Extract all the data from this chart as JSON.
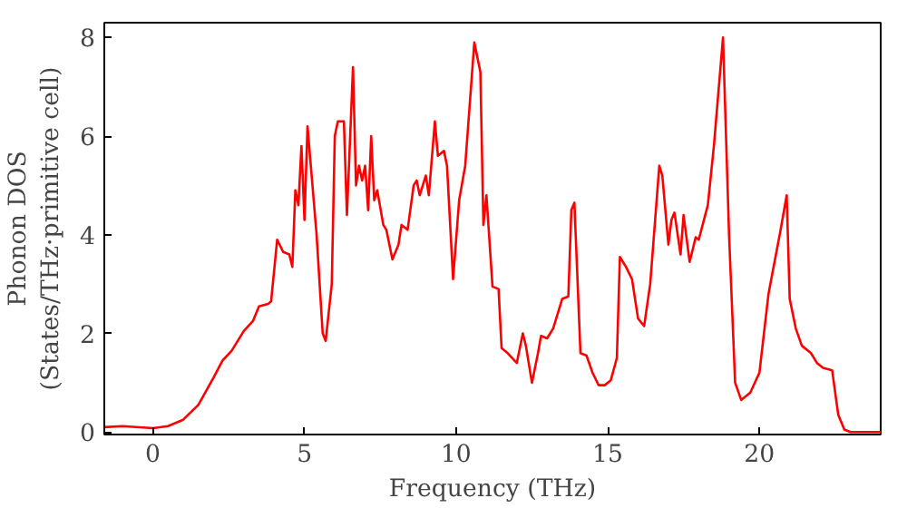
{
  "chart_data": {
    "type": "line",
    "xlabel": "Frequency (THz)",
    "ylabel": "Phonon DOS\n(States/THz·primitive cell)",
    "xlim": [
      -1.6,
      24
    ],
    "ylim": [
      -0.05,
      8.3
    ],
    "xticks": [
      0,
      5,
      10,
      15,
      20
    ],
    "yticks": [
      0,
      2,
      4,
      6,
      8
    ],
    "grid": false,
    "series": [
      {
        "color": "#ff0000",
        "x": [
          -1.6,
          -1,
          0,
          0.5,
          1,
          1.5,
          2,
          2.3,
          2.6,
          3,
          3.3,
          3.5,
          3.8,
          3.9,
          4.1,
          4.3,
          4.5,
          4.6,
          4.7,
          4.8,
          4.9,
          5.0,
          5.1,
          5.4,
          5.6,
          5.7,
          5.9,
          6.0,
          6.1,
          6.3,
          6.4,
          6.6,
          6.7,
          6.8,
          6.9,
          7.0,
          7.1,
          7.2,
          7.3,
          7.4,
          7.6,
          7.7,
          7.9,
          8.1,
          8.2,
          8.4,
          8.6,
          8.7,
          8.8,
          9.0,
          9.1,
          9.3,
          9.4,
          9.6,
          9.7,
          9.9,
          10.1,
          10.3,
          10.6,
          10.8,
          10.9,
          11.0,
          11.2,
          11.4,
          11.5,
          11.7,
          12.0,
          12.2,
          12.3,
          12.5,
          12.7,
          12.8,
          13.0,
          13.2,
          13.5,
          13.7,
          13.8,
          13.9,
          14.1,
          14.3,
          14.5,
          14.7,
          14.9,
          15.1,
          15.3,
          15.4,
          15.6,
          15.8,
          16.0,
          16.2,
          16.4,
          16.7,
          16.8,
          17.0,
          17.1,
          17.2,
          17.4,
          17.5,
          17.7,
          17.9,
          18.0,
          18.3,
          18.5,
          18.8,
          19.0,
          19.2,
          19.4,
          19.7,
          20.0,
          20.3,
          20.7,
          20.9,
          21.0,
          21.2,
          21.4,
          21.7,
          21.9,
          22.1,
          22.4,
          22.6,
          22.8,
          23,
          24
        ],
        "values": [
          0.1,
          0.12,
          0.08,
          0.12,
          0.25,
          0.55,
          1.1,
          1.45,
          1.65,
          2.05,
          2.25,
          2.55,
          2.6,
          2.65,
          3.9,
          3.65,
          3.6,
          3.35,
          4.9,
          4.6,
          5.8,
          4.3,
          6.2,
          4.0,
          2.0,
          1.85,
          3.0,
          6.0,
          6.3,
          6.3,
          4.4,
          7.4,
          5.0,
          5.4,
          5.1,
          5.4,
          4.5,
          6.0,
          4.7,
          4.9,
          4.2,
          4.1,
          3.5,
          3.8,
          4.2,
          4.1,
          5.0,
          5.1,
          4.8,
          5.2,
          4.8,
          6.3,
          5.6,
          5.7,
          5.4,
          3.1,
          4.7,
          5.4,
          7.9,
          7.3,
          4.2,
          4.8,
          2.95,
          2.9,
          1.7,
          1.6,
          1.4,
          2.0,
          1.75,
          1.0,
          1.6,
          1.95,
          1.9,
          2.1,
          2.7,
          2.75,
          4.5,
          4.65,
          1.6,
          1.55,
          1.2,
          0.95,
          0.95,
          1.05,
          1.5,
          3.55,
          3.35,
          3.1,
          2.3,
          2.15,
          3.0,
          5.4,
          5.2,
          3.8,
          4.3,
          4.45,
          3.6,
          4.4,
          3.45,
          3.95,
          3.9,
          4.6,
          5.8,
          8.0,
          4.0,
          1.0,
          0.65,
          0.8,
          1.2,
          2.8,
          4.1,
          4.8,
          2.7,
          2.1,
          1.75,
          1.6,
          1.4,
          1.3,
          1.25,
          0.35,
          0.05,
          0,
          0
        ]
      }
    ]
  }
}
